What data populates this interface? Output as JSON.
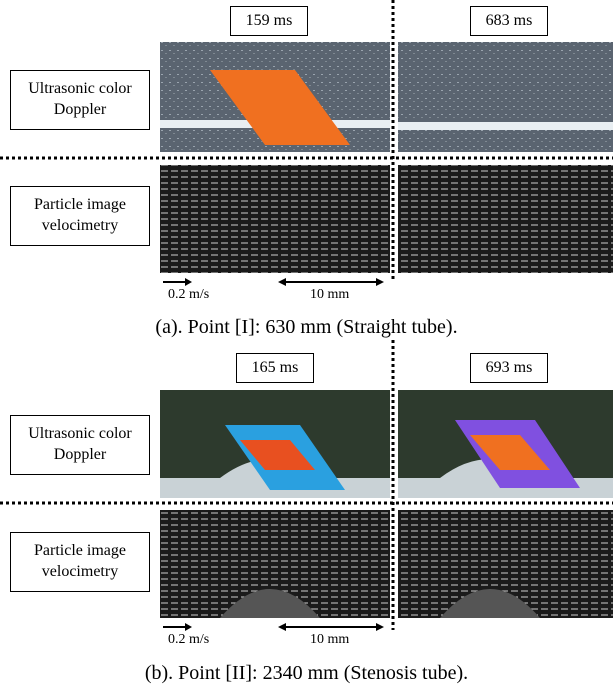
{
  "panels": [
    {
      "times": [
        "159 ms",
        "683 ms"
      ],
      "doppler_label": "Ultrasonic color Doppler",
      "piv_label": "Particle image velocimetry",
      "scale_velocity": "0.2 m/s",
      "scale_length": "10 mm",
      "caption": "(a). Point [I]: 630 mm (Straight tube)."
    },
    {
      "times": [
        "165 ms",
        "693 ms"
      ],
      "doppler_label": "Ultrasonic color Doppler",
      "piv_label": "Particle image velocimetry",
      "scale_velocity": "0.2 m/s",
      "scale_length": "10 mm",
      "caption": "(b). Point [II]: 2340 mm (Stenosis tube)."
    }
  ]
}
